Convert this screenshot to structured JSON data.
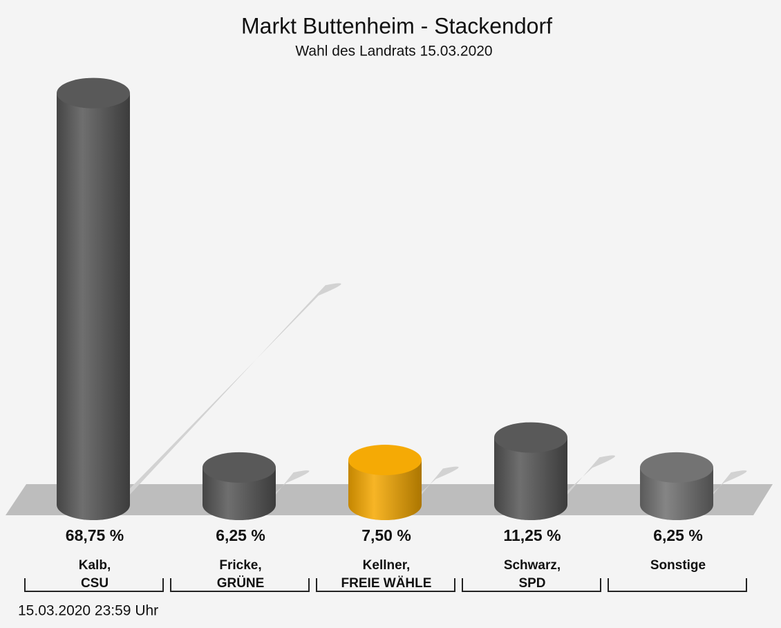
{
  "chart_data": {
    "type": "bar",
    "title": "Markt Buttenheim - Stackendorf",
    "subtitle": "Wahl des Landrats 15.03.2020",
    "categories": [
      [
        "Kalb,",
        "CSU"
      ],
      [
        "Fricke,",
        "GRÜNE"
      ],
      [
        "Kellner,",
        "FREIE WÄHLE"
      ],
      [
        "Schwarz,",
        "SPD"
      ],
      [
        "Sonstige"
      ]
    ],
    "values": [
      68.75,
      6.25,
      7.5,
      11.25,
      6.25
    ],
    "value_labels": [
      "68,75 %",
      "6,25 %",
      "7,50 %",
      "11,25 %",
      "6,25 %"
    ],
    "colors": [
      "#565656",
      "#565656",
      "#f5a800",
      "#565656",
      "#707070"
    ],
    "footnote": "15.03.2020 23:59 Uhr"
  }
}
